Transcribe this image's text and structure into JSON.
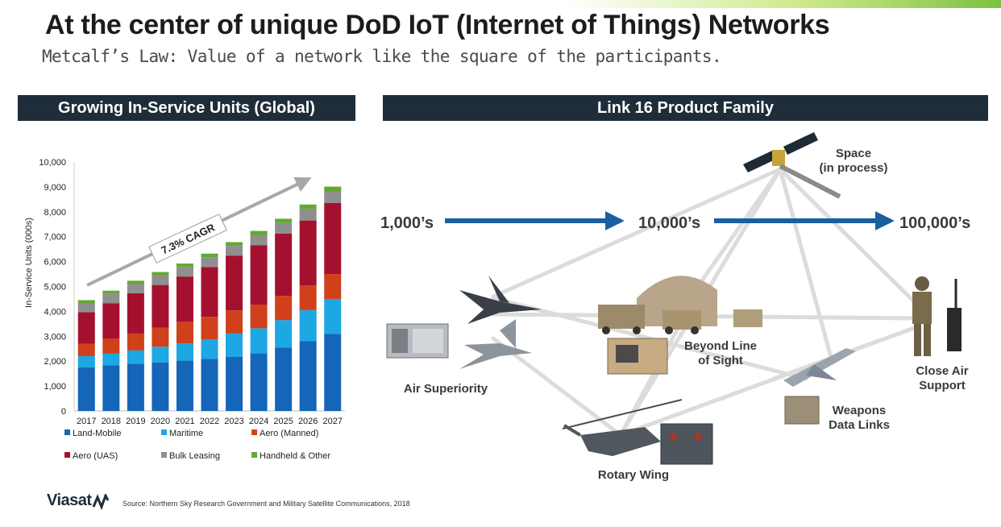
{
  "header": {
    "title": "At the center of unique DoD IoT (Internet of Things) Networks",
    "subtitle": "Metcalf’s Law: Value of a network like the square of the participants."
  },
  "left_panel": {
    "title": "Growing In-Service Units (Global)"
  },
  "right_panel": {
    "title": "Link 16 Product Family",
    "scale_labels": [
      "1,000’s",
      "10,000’s",
      "100,000’s"
    ],
    "nodes": {
      "space": [
        "Space",
        "(in process)"
      ],
      "air_superiority": [
        "Air Superiority"
      ],
      "beyond_los": [
        "Beyond Line",
        "of Sight"
      ],
      "close_air": [
        "Close Air",
        "Support"
      ],
      "weapons": [
        "Weapons",
        "Data Links"
      ],
      "rotary": [
        "Rotary Wing"
      ]
    }
  },
  "chart_data": {
    "type": "bar",
    "stacked": true,
    "categories": [
      "2017",
      "2018",
      "2019",
      "2020",
      "2021",
      "2022",
      "2023",
      "2024",
      "2025",
      "2026",
      "2027"
    ],
    "ylabel": "In-Service Units (000s)",
    "ylim": [
      0,
      10000
    ],
    "yticks": [
      "0",
      "1,000",
      "2,000",
      "3,000",
      "4,000",
      "5,000",
      "6,000",
      "7,000",
      "8,000",
      "9,000",
      "10,000"
    ],
    "annotation": "7.3% CAGR",
    "legend_position": "bottom",
    "series": [
      {
        "name": "Land-Mobile",
        "color": "#1565b8",
        "values": [
          1750,
          1830,
          1900,
          1950,
          2020,
          2090,
          2180,
          2320,
          2550,
          2800,
          3100
        ]
      },
      {
        "name": "Maritime",
        "color": "#1da7e3",
        "values": [
          450,
          470,
          530,
          630,
          690,
          780,
          930,
          1000,
          1100,
          1250,
          1400
        ]
      },
      {
        "name": "Aero (Manned)",
        "color": "#d0401b",
        "values": [
          500,
          600,
          680,
          760,
          870,
          910,
          930,
          950,
          970,
          1000,
          1000
        ]
      },
      {
        "name": "Aero (UAS)",
        "color": "#a3112e",
        "values": [
          1270,
          1430,
          1620,
          1720,
          1820,
          2000,
          2200,
          2380,
          2500,
          2600,
          2850
        ]
      },
      {
        "name": "Bulk Leasing",
        "color": "#8f8f8f",
        "values": [
          350,
          370,
          370,
          380,
          380,
          390,
          390,
          420,
          430,
          450,
          450
        ]
      },
      {
        "name": "Handheld & Other",
        "color": "#62a832",
        "values": [
          130,
          130,
          130,
          140,
          140,
          150,
          150,
          160,
          170,
          190,
          210
        ]
      }
    ]
  },
  "footer": {
    "logo": "Viasat",
    "source": "Source: Northern Sky Research Government and Military Satellite Communications, 2018"
  }
}
